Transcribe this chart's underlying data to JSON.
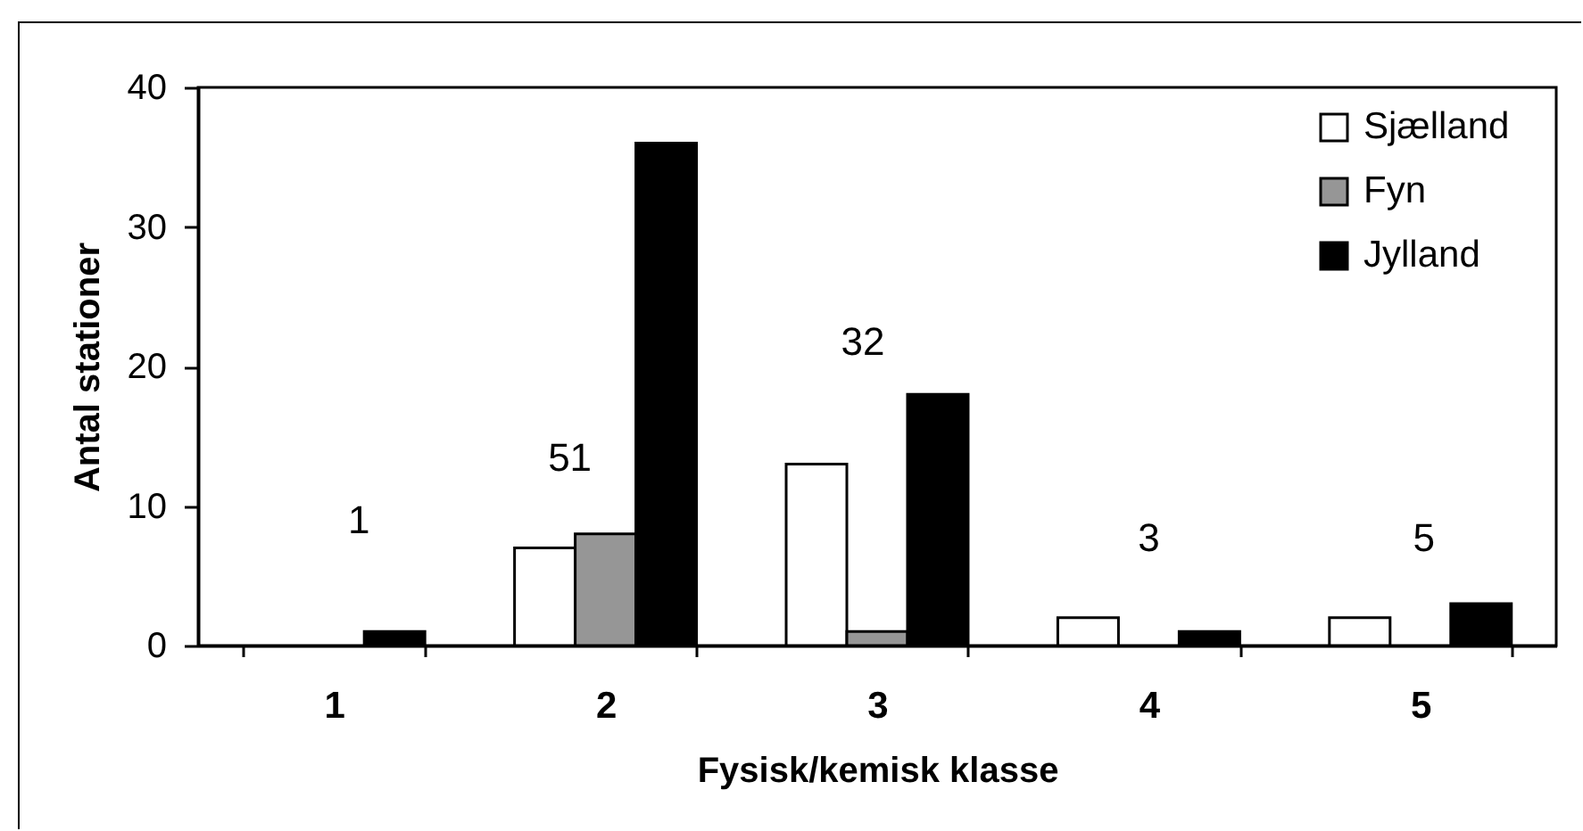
{
  "chart_data": {
    "type": "bar",
    "xlabel": "Fysisk/kemisk klasse",
    "ylabel": "Antal stationer",
    "categories": [
      "1",
      "2",
      "3",
      "4",
      "5"
    ],
    "series": [
      {
        "name": "Sjælland",
        "color": "#ffffff",
        "values": [
          null,
          7,
          13,
          2,
          2
        ]
      },
      {
        "name": "Fyn",
        "color": "#969696",
        "values": [
          null,
          8,
          1,
          null,
          null
        ]
      },
      {
        "name": "Jylland",
        "color": "#000000",
        "values": [
          1,
          36,
          18,
          1,
          3
        ]
      }
    ],
    "ylim": [
      0,
      40
    ],
    "yticks": [
      0,
      10,
      20,
      30,
      40
    ],
    "grid": false,
    "legend": "top right",
    "totals": [
      "1",
      "51",
      "32",
      "3",
      "5"
    ]
  }
}
